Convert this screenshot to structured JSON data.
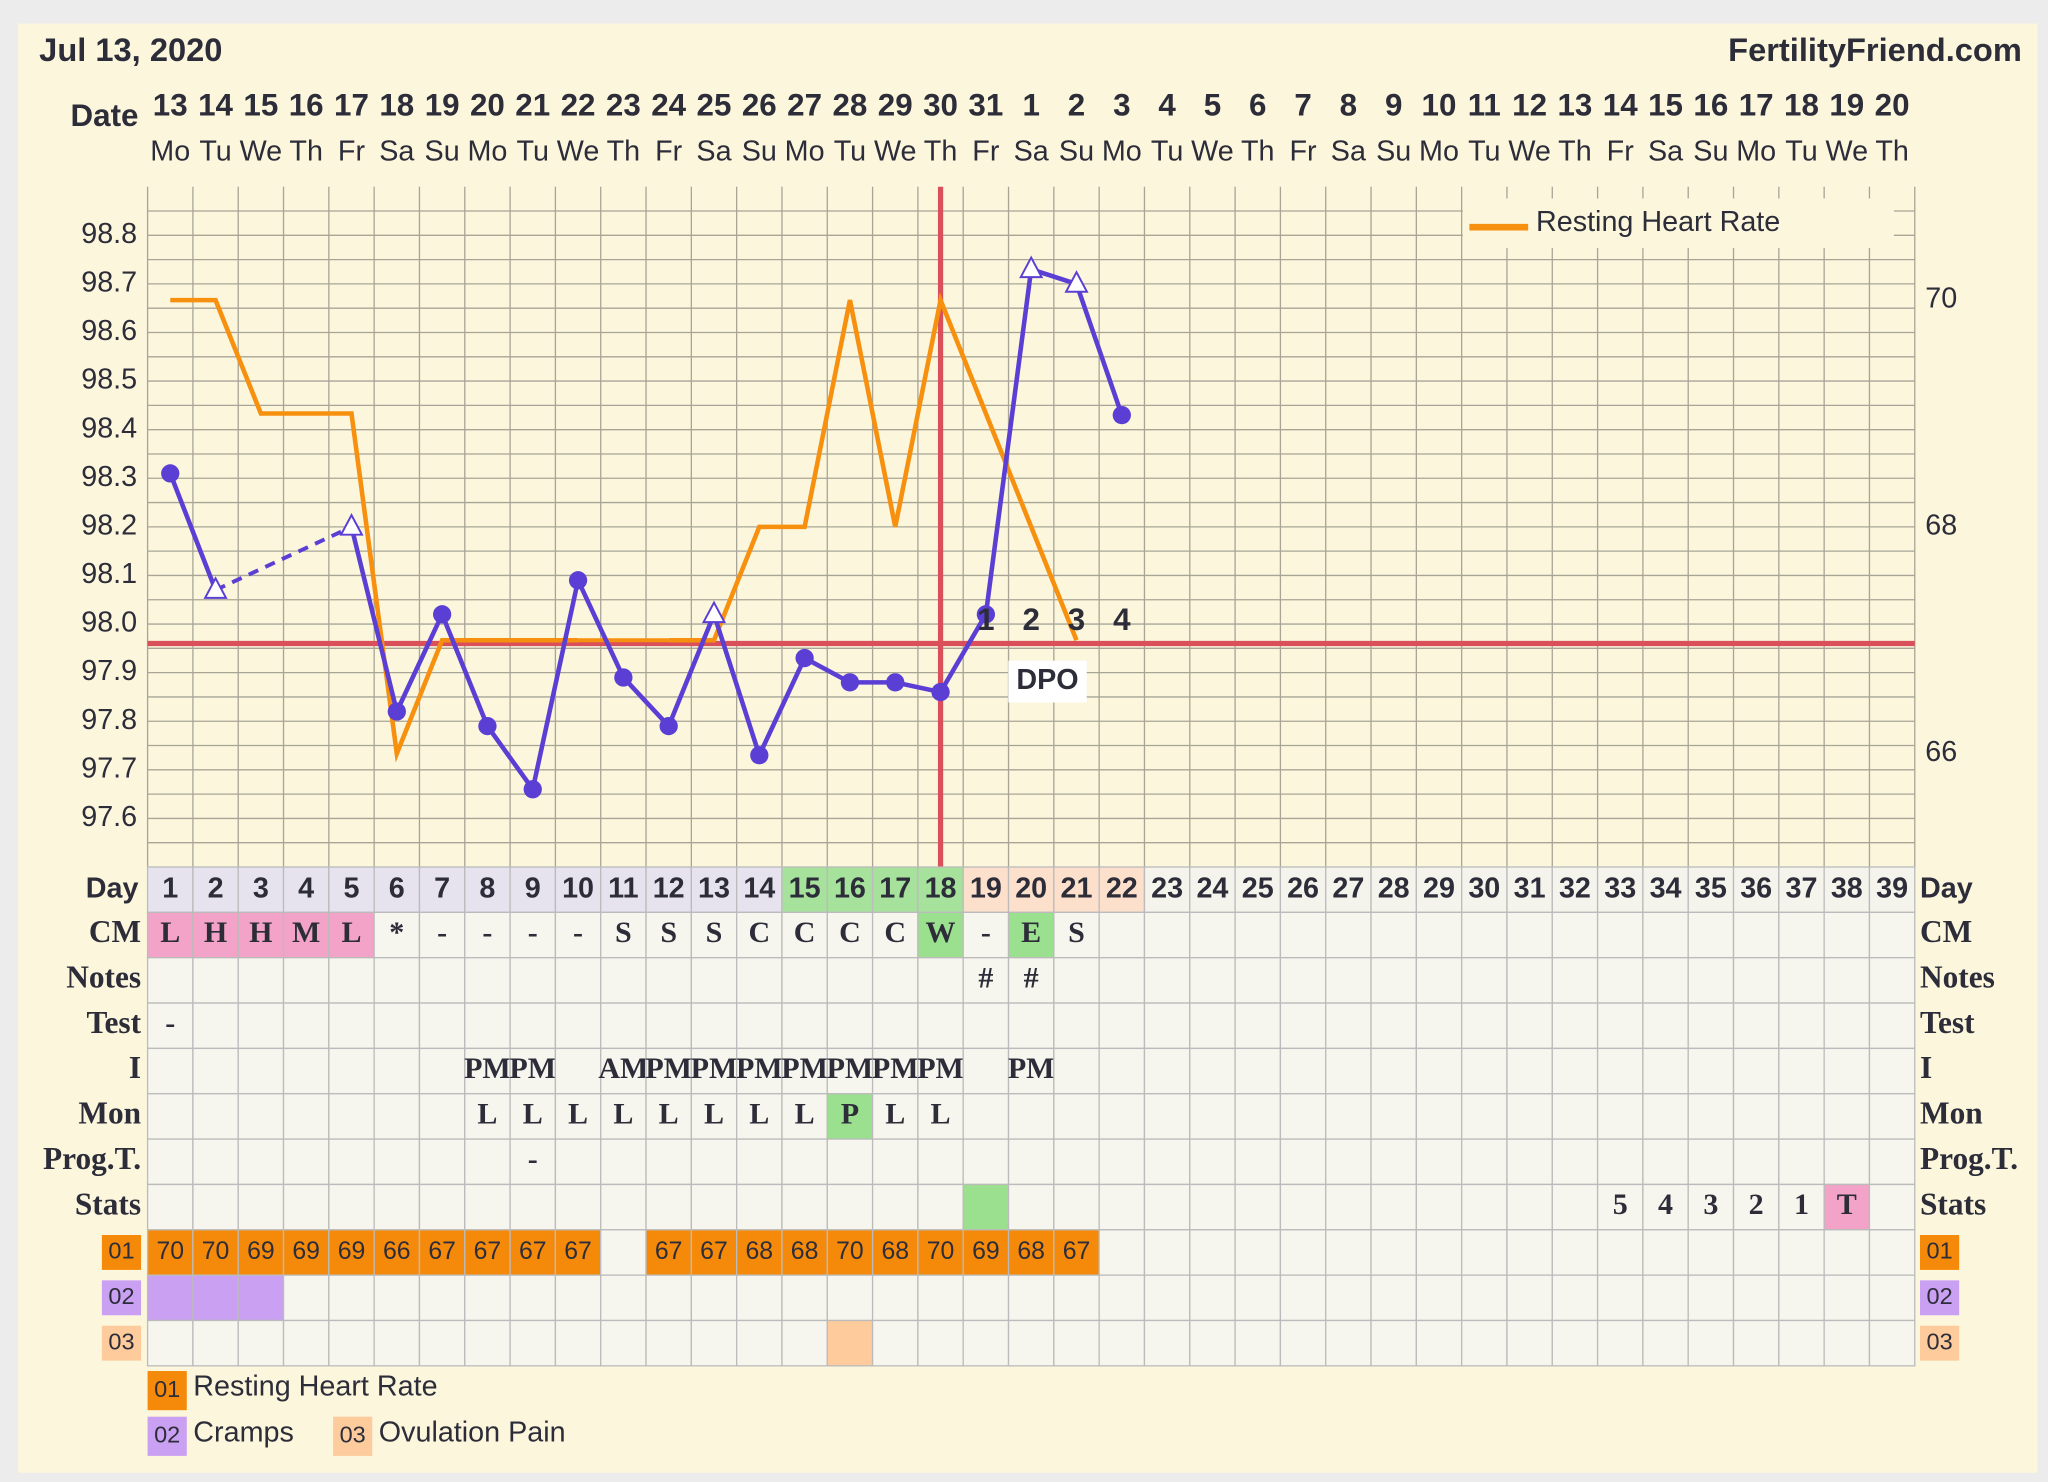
{
  "header": {
    "date": "Jul 13, 2020",
    "site": "FertilityFriend.com"
  },
  "chart_data": {
    "type": "line",
    "x_label": "Date",
    "dates": [
      "13",
      "14",
      "15",
      "16",
      "17",
      "18",
      "19",
      "20",
      "21",
      "22",
      "23",
      "24",
      "25",
      "26",
      "27",
      "28",
      "29",
      "30",
      "31",
      "1",
      "2",
      "3",
      "4",
      "5",
      "6",
      "7",
      "8",
      "9",
      "10",
      "11",
      "12",
      "13",
      "14",
      "15",
      "16",
      "17",
      "18",
      "19",
      "20"
    ],
    "weekdays": [
      "Mo",
      "Tu",
      "We",
      "Th",
      "Fr",
      "Sa",
      "Su",
      "Mo",
      "Tu",
      "We",
      "Th",
      "Fr",
      "Sa",
      "Su",
      "Mo",
      "Tu",
      "We",
      "Th",
      "Fr",
      "Sa",
      "Su",
      "Mo",
      "Tu",
      "We",
      "Th",
      "Fr",
      "Sa",
      "Su",
      "Mo",
      "Tu",
      "We",
      "Th",
      "Fr",
      "Sa",
      "Su",
      "Mo",
      "Tu",
      "We",
      "Th"
    ],
    "ylim": [
      97.5,
      98.9
    ],
    "yticks": [
      97.6,
      97.7,
      97.8,
      97.9,
      {
        "value": 98,
        "label": "98.0"
      },
      98.1,
      98.2,
      98.3,
      98.4,
      98.5,
      98.6,
      98.7,
      98.8
    ],
    "minor_yticks": [
      97.55,
      97.65,
      97.75,
      97.85,
      97.95,
      98.05,
      98.15,
      98.25,
      98.35,
      98.45,
      98.55,
      98.65,
      98.75,
      98.85
    ],
    "y2lim": [
      65,
      71
    ],
    "y2ticks": [
      66,
      68,
      70
    ],
    "grid": true,
    "legend": "top-right",
    "coverline": 97.96,
    "ovulation_day": 18,
    "coverline_color": "#d9505a",
    "dpo": {
      "label": "DPO",
      "values": [
        1,
        2,
        3,
        4
      ]
    },
    "series": [
      {
        "color": "#5b3fd4",
        "gap_style": "dashed",
        "values": [
          98.31,
          98.07,
          null,
          null,
          98.2,
          97.82,
          98.02,
          97.79,
          97.66,
          98.09,
          97.89,
          97.79,
          98.02,
          97.73,
          97.93,
          97.88,
          97.88,
          97.86,
          98.02,
          98.73,
          98.7,
          98.43,
          null,
          null,
          null,
          null,
          null,
          null,
          null,
          null,
          null,
          null,
          null,
          null,
          null,
          null,
          null,
          null,
          null
        ],
        "markers": [
          "circle",
          "triangle",
          null,
          null,
          "triangle",
          "circle",
          "circle",
          "circle",
          "circle",
          "circle",
          "circle",
          "circle",
          "triangle",
          "circle",
          "circle",
          "circle",
          "circle",
          "circle",
          "circle",
          "triangle",
          "triangle",
          "circle",
          null,
          null,
          null,
          null,
          null,
          null,
          null,
          null,
          null,
          null,
          null,
          null,
          null,
          null,
          null,
          null,
          null
        ]
      },
      {
        "name": "Resting Heart Rate",
        "color": "#f7900f",
        "axis": "y2",
        "gap_style": "solid",
        "values": [
          70,
          70,
          69,
          69,
          69,
          66,
          67,
          67,
          67,
          67,
          null,
          67,
          67,
          68,
          68,
          70,
          68,
          70,
          69,
          68,
          67,
          null,
          null,
          null,
          null,
          null,
          null,
          null,
          null,
          null,
          null,
          null,
          null,
          null,
          null,
          null,
          null,
          null,
          null
        ]
      }
    ]
  },
  "table": {
    "day_label": "Day",
    "days": [
      1,
      2,
      3,
      4,
      5,
      6,
      7,
      8,
      9,
      10,
      11,
      12,
      13,
      14,
      15,
      16,
      17,
      18,
      19,
      20,
      21,
      22,
      23,
      24,
      25,
      26,
      27,
      28,
      29,
      30,
      31,
      32,
      33,
      34,
      35,
      36,
      37,
      38,
      39
    ],
    "day_highlights": [
      {
        "color": "#e6e3ee",
        "days": [
          1,
          2,
          3,
          4,
          5,
          6,
          7,
          8,
          9,
          10,
          11,
          12,
          13,
          14
        ]
      },
      {
        "color": "#a6e29c",
        "days": [
          15,
          16,
          17,
          18
        ]
      },
      {
        "color": "#fde0cc",
        "days": [
          19,
          20,
          21,
          22
        ]
      }
    ],
    "rows": [
      {
        "label": "CM",
        "cells": {
          "1": "L",
          "2": "H",
          "3": "H",
          "4": "M",
          "5": "L",
          "6": "*",
          "7": "-",
          "8": "-",
          "9": "-",
          "10": "-",
          "11": "S",
          "12": "S",
          "13": "S",
          "14": "C",
          "15": "C",
          "16": "C",
          "17": "C",
          "18": "W",
          "19": "-",
          "20": "E",
          "21": "S"
        },
        "highlights": [
          {
            "color": "#f2a3c7",
            "days": [
              1,
              2,
              3,
              4,
              5
            ]
          },
          {
            "color": "#9be08e",
            "days": [
              18,
              20
            ]
          }
        ]
      },
      {
        "label": "Notes",
        "cells": {
          "19": "#",
          "20": "#"
        }
      },
      {
        "label": "Test",
        "cells": {
          "1": "-"
        }
      },
      {
        "label": "I",
        "cells": {
          "8": "PM",
          "9": "PM",
          "11": "AM",
          "12": "PM",
          "13": "PM",
          "14": "PM",
          "15": "PM",
          "16": "PM",
          "17": "PM",
          "18": "PM",
          "20": "PM"
        }
      },
      {
        "label": "Mon",
        "cells": {
          "8": "L",
          "9": "L",
          "10": "L",
          "11": "L",
          "12": "L",
          "13": "L",
          "14": "L",
          "15": "L",
          "16": "P",
          "17": "L",
          "18": "L"
        },
        "highlights": [
          {
            "color": "#9be08e",
            "days": [
              16
            ]
          }
        ]
      },
      {
        "label": "Prog.T.",
        "cells": {
          "9": "-"
        }
      },
      {
        "label": "Stats",
        "cells": {
          "33": 5,
          "34": 4,
          "35": 3,
          "36": 2,
          "37": 1,
          "38": "T"
        },
        "highlights": [
          {
            "color": "#9be08e",
            "days": [
              19
            ]
          },
          {
            "color": "#f2a3c7",
            "days": [
              38
            ]
          }
        ]
      }
    ],
    "symptoms": [
      {
        "code": "01",
        "name": "Resting Heart Rate",
        "color": "#f58a0a"
      },
      {
        "code": "02",
        "name": "Cramps",
        "color": "#c9a0f2",
        "days": [
          1,
          2,
          3
        ]
      },
      {
        "code": "03",
        "name": "Ovulation Pain",
        "color": "#fdcb9c",
        "days": [
          16
        ]
      }
    ]
  }
}
